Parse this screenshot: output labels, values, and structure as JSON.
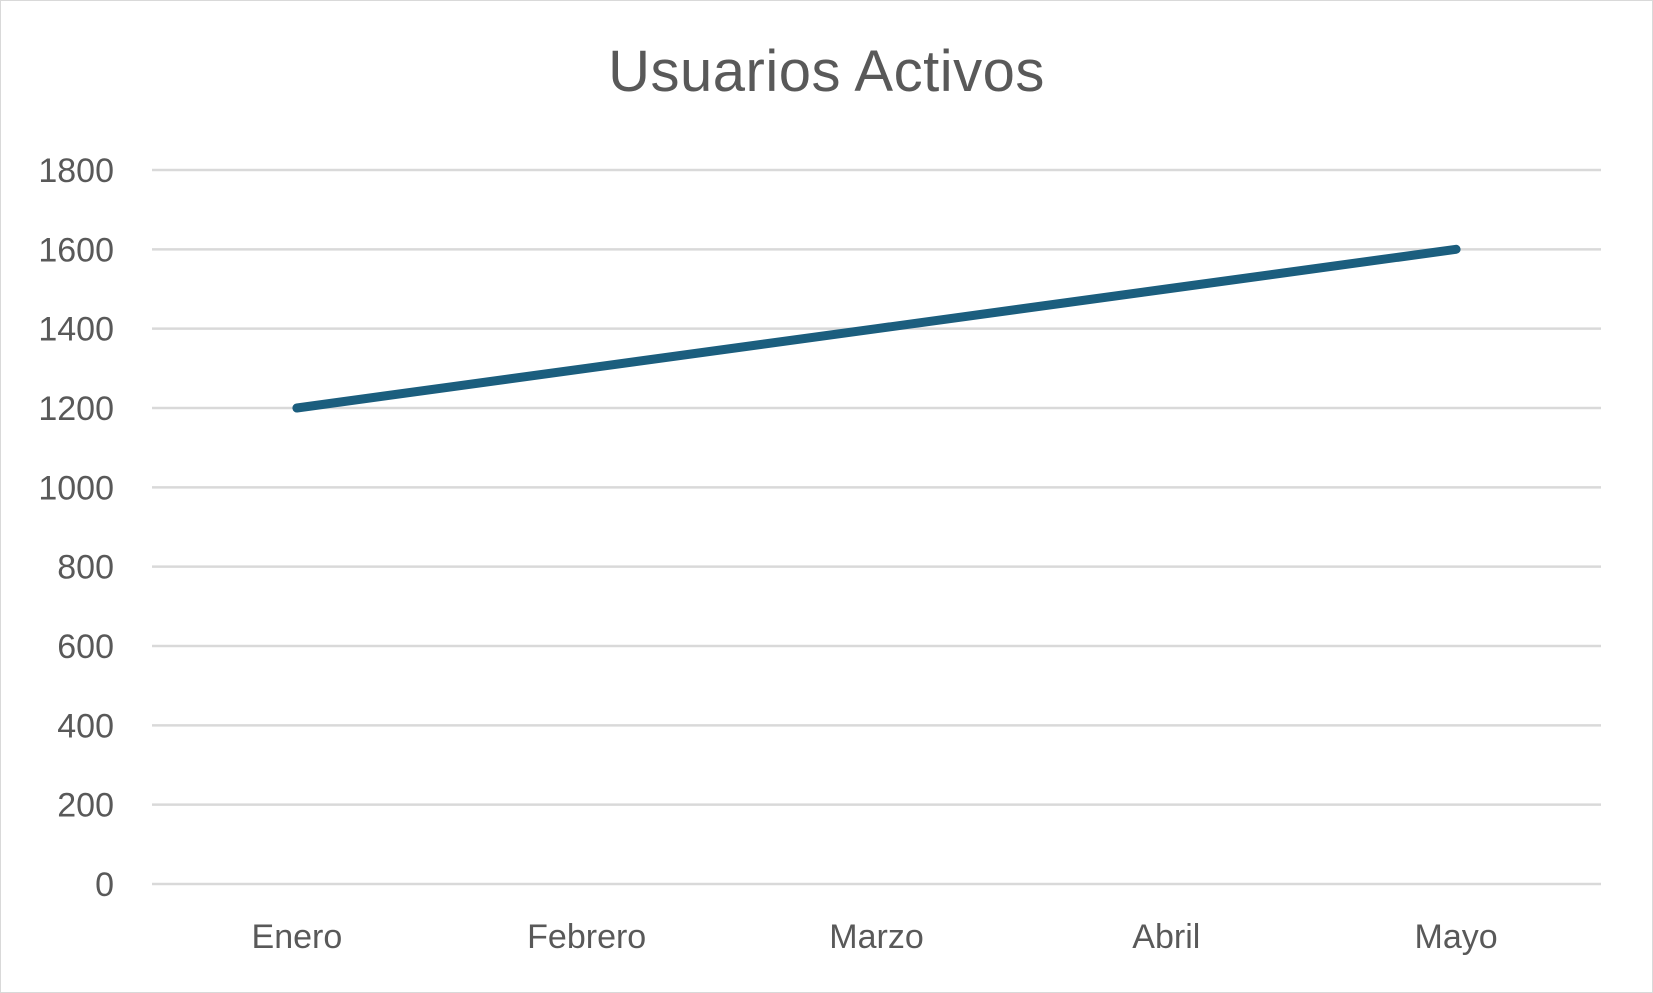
{
  "chart_data": {
    "type": "line",
    "title": "Usuarios Activos",
    "xlabel": "",
    "ylabel": "",
    "categories": [
      "Enero",
      "Febrero",
      "Marzo",
      "Abril",
      "Mayo"
    ],
    "series": [
      {
        "values": [
          1200,
          1300,
          1400,
          1500,
          1600
        ],
        "color": "#1b5e7e"
      }
    ],
    "ylim": [
      0,
      1800
    ],
    "yticks": [
      0,
      200,
      400,
      600,
      800,
      1000,
      1200,
      1400,
      1600,
      1800
    ],
    "grid": true,
    "legend": "none"
  }
}
